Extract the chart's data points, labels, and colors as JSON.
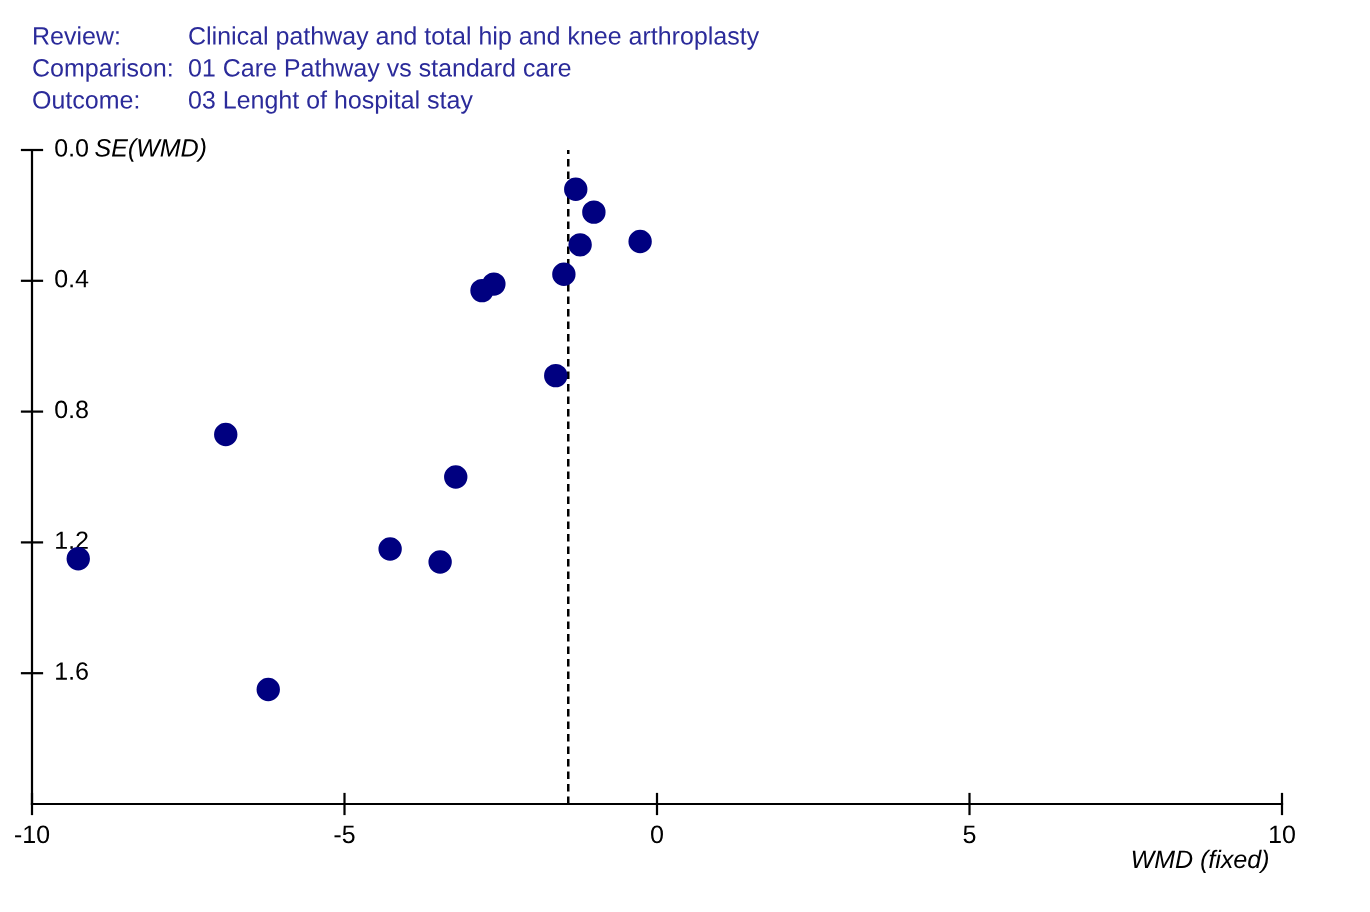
{
  "chart_data": {
    "type": "scatter",
    "annotations": [
      "Review:",
      "Clinical pathway and total hip and knee arthroplasty",
      "Comparison:",
      "01 Care Pathway vs standard care",
      "Outcome:",
      "03 Lenght of hospital stay"
    ],
    "xlabel": "WMD (fixed)",
    "ylabel": "SE(WMD)",
    "series": [
      {
        "color": "#000080",
        "x": [
          -1.3,
          -1.01,
          -1.23,
          -0.27,
          -1.49,
          -2.61,
          -2.8,
          -1.62,
          -6.9,
          -3.22,
          -9.26,
          -4.27,
          -3.47,
          -6.22
        ],
        "values": [
          0.12,
          0.19,
          0.29,
          0.28,
          0.38,
          0.41,
          0.43,
          0.69,
          0.87,
          1.0,
          1.25,
          1.22,
          1.26,
          1.65
        ]
      }
    ],
    "marker": "circle",
    "xlim": [
      -10,
      10
    ],
    "xticks": [
      -10,
      -5,
      0,
      5,
      10
    ],
    "ylim": [
      2,
      0
    ],
    "yticks": [
      {
        "value": 0,
        "label": "0.0"
      },
      0.4,
      0.8,
      1.2,
      1.6
    ],
    "ref_lines": [
      {
        "axis": "x",
        "value": -1.42,
        "color": "#000000",
        "line_style": "dashed"
      }
    ],
    "grid": false,
    "legend": false
  }
}
